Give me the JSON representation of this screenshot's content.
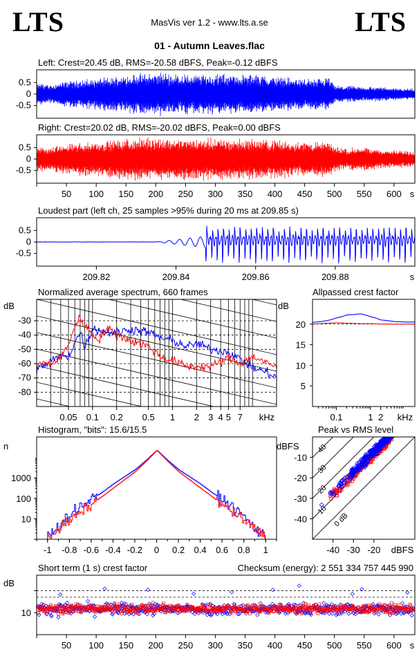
{
  "header": {
    "logo_left": "LTS",
    "logo_right": "LTS",
    "app_title": "MasVis ver 1.2 - www.lts.a.se",
    "file_name": "01 - Autumn Leaves.flac"
  },
  "colors": {
    "left_channel": "#0000ff",
    "right_channel": "#ff0000"
  },
  "chart_data": [
    {
      "id": "left",
      "type": "line",
      "title": "Left: Crest=20.45 dB, RMS=-20.58 dBFS, Peak=-0.12 dBFS",
      "series": [
        {
          "color": "#0000ff"
        }
      ],
      "ylim": [
        -1,
        1
      ],
      "yticks": [
        "0.5",
        "0",
        "-0.5"
      ],
      "envelope_seconds": [
        0,
        10,
        20,
        30,
        50,
        70,
        90,
        110,
        130,
        150,
        170,
        190,
        210,
        230,
        250,
        270,
        290,
        310,
        330,
        350,
        370,
        390,
        410,
        430,
        450,
        470,
        490,
        500,
        520,
        540,
        560,
        580,
        600,
        620,
        630
      ],
      "envelope_amplitude": [
        0.45,
        0.55,
        0.4,
        0.5,
        0.6,
        0.65,
        0.7,
        0.75,
        0.8,
        0.9,
        0.95,
        0.98,
        1.0,
        0.95,
        0.93,
        0.92,
        0.95,
        0.93,
        0.92,
        0.9,
        0.92,
        0.85,
        0.8,
        0.75,
        0.72,
        0.7,
        0.78,
        0.4,
        0.38,
        0.36,
        0.35,
        0.33,
        0.3,
        0.28,
        0.25
      ]
    },
    {
      "id": "right",
      "type": "line",
      "title": "Right: Crest=20.02 dB, RMS=-20.02 dBFS, Peak=0.00 dBFS",
      "series": [
        {
          "color": "#ff0000"
        }
      ],
      "ylim": [
        -1,
        1
      ],
      "yticks": [
        "0.5",
        "0",
        "-0.5"
      ],
      "xlabel": "s",
      "xticks": [
        50,
        100,
        150,
        200,
        250,
        300,
        350,
        400,
        450,
        500,
        550,
        600
      ],
      "xlim": [
        0,
        635
      ],
      "envelope_seconds": [
        0,
        10,
        20,
        30,
        50,
        70,
        90,
        110,
        130,
        150,
        170,
        190,
        210,
        230,
        250,
        270,
        290,
        310,
        330,
        350,
        370,
        390,
        410,
        430,
        450,
        470,
        490,
        500,
        520,
        540,
        560,
        580,
        600,
        620,
        630
      ],
      "envelope_amplitude": [
        0.55,
        0.6,
        0.5,
        0.6,
        0.7,
        0.75,
        0.8,
        0.85,
        0.9,
        0.95,
        0.97,
        0.98,
        1.0,
        0.97,
        0.96,
        0.95,
        0.97,
        0.96,
        0.95,
        0.93,
        0.95,
        0.9,
        0.88,
        0.85,
        0.82,
        0.8,
        0.82,
        0.6,
        0.5,
        0.55,
        0.5,
        0.45,
        0.4,
        0.4,
        0.38
      ]
    },
    {
      "id": "loudest",
      "type": "line",
      "title": "Loudest part (left  ch, 25 samples >95% during 20 ms at 209.85 s)",
      "series": [
        {
          "color": "#0000ff"
        }
      ],
      "ylim": [
        -1,
        1
      ],
      "yticks": [
        "0.5",
        "0",
        "-0.5"
      ],
      "xlabel": "s",
      "xticks": [
        "209.82",
        "209.84",
        "209.86",
        "209.88"
      ],
      "xlim": [
        209.805,
        209.9
      ]
    },
    {
      "id": "spectrum",
      "type": "line",
      "title": "Normalized average spectrum, 660 frames",
      "ylabel": "dB",
      "xlabel": "kHz",
      "yticks": [
        -30,
        -40,
        -50,
        -60,
        -70,
        -80
      ],
      "ylim": [
        -90,
        -15
      ],
      "xticks": [
        "0.05",
        "0.1",
        "0.2",
        "0.5",
        "1",
        "2",
        "3",
        "4",
        "5",
        "7"
      ],
      "xtick_values": [
        0.05,
        0.1,
        0.2,
        0.5,
        1,
        2,
        3,
        4,
        5,
        7
      ],
      "xlim_khz": [
        0.02,
        20
      ],
      "series": [
        {
          "color": "#0000ff",
          "x_khz": [
            0.02,
            0.03,
            0.04,
            0.05,
            0.06,
            0.07,
            0.08,
            0.1,
            0.12,
            0.15,
            0.2,
            0.3,
            0.5,
            0.7,
            1,
            1.5,
            2,
            3,
            5,
            7,
            10,
            15,
            20
          ],
          "y_db": [
            -64,
            -58,
            -55,
            -55,
            -45,
            -38,
            -48,
            -35,
            -37,
            -38,
            -38,
            -36,
            -38,
            -42,
            -44,
            -48,
            -46,
            -50,
            -52,
            -57,
            -63,
            -66,
            -70
          ]
        },
        {
          "color": "#ff0000",
          "x_khz": [
            0.02,
            0.03,
            0.04,
            0.05,
            0.06,
            0.07,
            0.08,
            0.1,
            0.12,
            0.15,
            0.2,
            0.3,
            0.5,
            0.7,
            1,
            1.5,
            2,
            3,
            5,
            7,
            10,
            15,
            20
          ],
          "y_db": [
            -60,
            -60,
            -56,
            -46,
            -34,
            -28,
            -33,
            -40,
            -43,
            -35,
            -40,
            -44,
            -48,
            -55,
            -58,
            -62,
            -62,
            -62,
            -56,
            -60,
            -55,
            -60,
            -62
          ]
        }
      ]
    },
    {
      "id": "crest_allpass",
      "type": "line",
      "title": "Allpassed crest factor",
      "ylabel": "dB",
      "xlabel": "kHz",
      "yticks": [
        20,
        15,
        10,
        5
      ],
      "ylim": [
        0,
        26
      ],
      "xticks": [
        "0.1",
        "1",
        "2"
      ],
      "xtick_values": [
        0.1,
        1,
        2
      ],
      "xlim_khz": [
        0.02,
        20
      ],
      "series": [
        {
          "color": "#0000ff",
          "x_khz": [
            0.02,
            0.05,
            0.1,
            0.2,
            0.5,
            1,
            2,
            5,
            10,
            20
          ],
          "y_db": [
            20.4,
            20.8,
            21.5,
            22.2,
            22.5,
            21.8,
            21.0,
            20.6,
            20.5,
            20.5
          ]
        },
        {
          "color": "#ff0000",
          "x_khz": [
            0.02,
            0.05,
            0.1,
            0.2,
            0.5,
            1,
            2,
            5,
            10,
            20
          ],
          "y_db": [
            20.0,
            20.2,
            20.3,
            20.2,
            20.1,
            20.1,
            20.0,
            20.0,
            20.0,
            20.0
          ]
        }
      ]
    },
    {
      "id": "histogram",
      "type": "line",
      "title": "Histogram, \"bits\": 15.6/15.5",
      "ylabel": "n",
      "yticks": [
        "1000",
        "100",
        "10"
      ],
      "ylim_log10": [
        0,
        5
      ],
      "xticks": [
        "-1",
        "-0.8",
        "-0.6",
        "-0.4",
        "-0.2",
        "0",
        "0.2",
        "0.4",
        "0.6",
        "0.8",
        "1"
      ],
      "xlim": [
        -1.1,
        1.1
      ],
      "series": [
        {
          "color": "#0000ff",
          "x": [
            -0.98,
            -0.9,
            -0.8,
            -0.7,
            -0.6,
            -0.5,
            -0.4,
            -0.3,
            -0.2,
            -0.1,
            0,
            0.1,
            0.2,
            0.3,
            0.4,
            0.5,
            0.6,
            0.7,
            0.8,
            0.9,
            0.98
          ],
          "log10_n": [
            0.2,
            0.7,
            1.2,
            1.6,
            1.95,
            2.3,
            2.7,
            3.05,
            3.4,
            3.85,
            4.35,
            3.85,
            3.4,
            3.05,
            2.7,
            2.3,
            1.95,
            1.55,
            1.1,
            0.5,
            0.2
          ]
        },
        {
          "color": "#ff0000",
          "x": [
            -0.98,
            -0.9,
            -0.8,
            -0.7,
            -0.6,
            -0.5,
            -0.4,
            -0.3,
            -0.2,
            -0.1,
            0,
            0.1,
            0.2,
            0.3,
            0.4,
            0.5,
            0.6,
            0.7,
            0.8,
            0.9,
            0.98
          ],
          "log10_n": [
            0.2,
            0.5,
            0.9,
            1.3,
            1.7,
            2.1,
            2.5,
            2.9,
            3.3,
            3.8,
            4.35,
            3.8,
            3.3,
            2.9,
            2.5,
            2.1,
            1.7,
            1.3,
            0.9,
            0.5,
            0.2
          ]
        }
      ]
    },
    {
      "id": "peak_rms",
      "type": "scatter",
      "title": "Peak vs RMS level",
      "ylabel": "dBFS",
      "xlabel": "dBFS",
      "yticks": [
        -10,
        -20,
        -30,
        -40
      ],
      "xticks": [
        -40,
        -30,
        -20
      ],
      "xlim": [
        -50,
        0
      ],
      "ylim": [
        -50,
        0
      ],
      "diagonal_labels": [
        "40",
        "30",
        "20",
        "10",
        "0 dB"
      ],
      "series": [
        {
          "color": "#0000ff"
        },
        {
          "color": "#ff0000"
        }
      ]
    },
    {
      "id": "short_term",
      "type": "scatter",
      "title": "Short term (1 s) crest factor",
      "checksum_label": "Checksum (energy):  2 551 334 757 445 990",
      "ylabel": "dB",
      "yticks": [
        10
      ],
      "ylim": [
        0,
        27
      ],
      "xlabel": "s",
      "xticks": [
        50,
        100,
        150,
        200,
        250,
        300,
        350,
        400,
        450,
        500,
        550,
        600
      ],
      "xlim": [
        0,
        635
      ],
      "series": [
        {
          "color": "#0000ff"
        },
        {
          "color": "#ff0000"
        }
      ]
    }
  ]
}
